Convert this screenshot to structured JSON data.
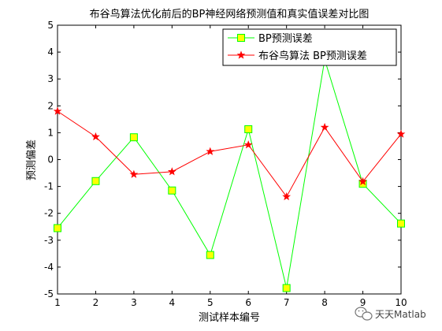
{
  "chart_data": {
    "type": "line",
    "title": "布谷鸟算法优化前后的BP神经网络预测值和真实值误差对比图",
    "xlabel": "测试样本编号",
    "ylabel": "预测偏差",
    "xlim": [
      1,
      10
    ],
    "ylim": [
      -5,
      5
    ],
    "xticks": [
      "1",
      "2",
      "3",
      "4",
      "5",
      "6",
      "7",
      "8",
      "9",
      "10"
    ],
    "yticks": [
      "-5",
      "-4",
      "-3",
      "-2",
      "-1",
      "0",
      "1",
      "2",
      "3",
      "4",
      "5"
    ],
    "grid": false,
    "legend_position": "top-right",
    "x": [
      1,
      2,
      3,
      4,
      5,
      6,
      7,
      8,
      9,
      10
    ],
    "series": [
      {
        "name": "BP预测误差",
        "color": "#00ff00",
        "marker": "square",
        "marker_fill": "#ffff00",
        "values": [
          -2.55,
          -0.8,
          0.83,
          -1.15,
          -3.55,
          1.13,
          -4.78,
          3.72,
          -0.9,
          -2.38
        ]
      },
      {
        "name": "布谷鸟算法 BP预测误差",
        "color": "#ff0000",
        "marker": "star",
        "values": [
          1.8,
          0.85,
          -0.55,
          -0.45,
          0.3,
          0.55,
          -1.38,
          1.2,
          -0.82,
          0.95
        ]
      }
    ]
  },
  "watermark": {
    "text": "天天Matlab",
    "icon": "wechat-icon"
  }
}
